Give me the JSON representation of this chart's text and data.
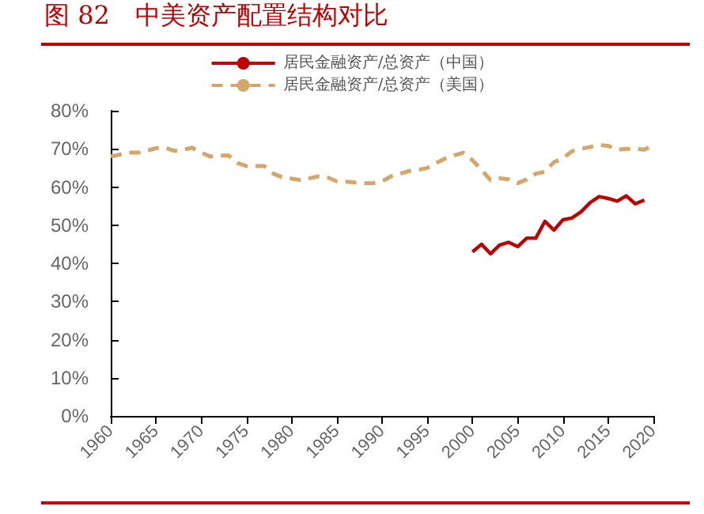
{
  "chart_data": {
    "type": "line",
    "title": "图 82　中美资产配置结构对比",
    "xlim": [
      1960,
      2020
    ],
    "xticks": [
      1960,
      1965,
      1970,
      1975,
      1980,
      1985,
      1990,
      1995,
      2000,
      2005,
      2010,
      2015,
      2020
    ],
    "ylim": [
      0,
      80
    ],
    "yticks": [
      {
        "value": 0,
        "label": "0%"
      },
      {
        "value": 10,
        "label": "10%"
      },
      {
        "value": 20,
        "label": "20%"
      },
      {
        "value": 30,
        "label": "30%"
      },
      {
        "value": 40,
        "label": "40%"
      },
      {
        "value": 50,
        "label": "50%"
      },
      {
        "value": 60,
        "label": "60%"
      },
      {
        "value": 70,
        "label": "70%"
      },
      {
        "value": 80,
        "label": "80%"
      }
    ],
    "grid": false,
    "legend": "top",
    "marker": "none",
    "series": [
      {
        "name": "居民金融资产/总资产（中国）",
        "color": "#c00000",
        "line_style": "solid",
        "x": [
          2000,
          2001,
          2002,
          2003,
          2004,
          2005,
          2006,
          2007,
          2008,
          2009,
          2010,
          2011,
          2012,
          2013,
          2014,
          2015,
          2016,
          2017,
          2018,
          2019
        ],
        "values": [
          43,
          45,
          42.5,
          44.8,
          45.5,
          44.4,
          46.6,
          46.6,
          51,
          48.7,
          51.4,
          51.9,
          53.5,
          55.9,
          57.5,
          57,
          56.3,
          57.7,
          55.6,
          56.6
        ]
      },
      {
        "name": "居民金融资产/总资产（美国）",
        "color": "#d4a66a",
        "line_style": "dashed",
        "x": [
          1960,
          1961,
          1962,
          1963,
          1964,
          1965,
          1966,
          1967,
          1968,
          1969,
          1970,
          1971,
          1972,
          1973,
          1974,
          1975,
          1976,
          1977,
          1978,
          1979,
          1980,
          1981,
          1982,
          1983,
          1984,
          1985,
          1986,
          1987,
          1988,
          1989,
          1990,
          1991,
          1992,
          1993,
          1994,
          1995,
          1996,
          1997,
          1998,
          1999,
          2000,
          2001,
          2002,
          2003,
          2004,
          2005,
          2006,
          2007,
          2008,
          2009,
          2010,
          2011,
          2012,
          2013,
          2014,
          2015,
          2016,
          2017,
          2018,
          2019,
          2020
        ],
        "values": [
          68,
          68.5,
          69,
          69,
          69.5,
          70.2,
          70.3,
          69.5,
          69.8,
          70.3,
          69,
          68,
          68.2,
          68.3,
          66.3,
          65.5,
          65.5,
          65.5,
          63.5,
          62.5,
          62.2,
          61.8,
          62.3,
          62.8,
          62.5,
          61.5,
          61.4,
          61.2,
          61,
          61,
          61.5,
          62.8,
          63.5,
          64.2,
          64.5,
          65,
          66.3,
          67.5,
          68.3,
          69,
          67,
          64.5,
          61.8,
          62.3,
          62,
          61,
          62,
          63.5,
          64,
          66.5,
          67.5,
          69.4,
          70,
          70.5,
          71,
          70.8,
          69.8,
          70,
          70,
          69.8,
          71
        ]
      }
    ]
  }
}
